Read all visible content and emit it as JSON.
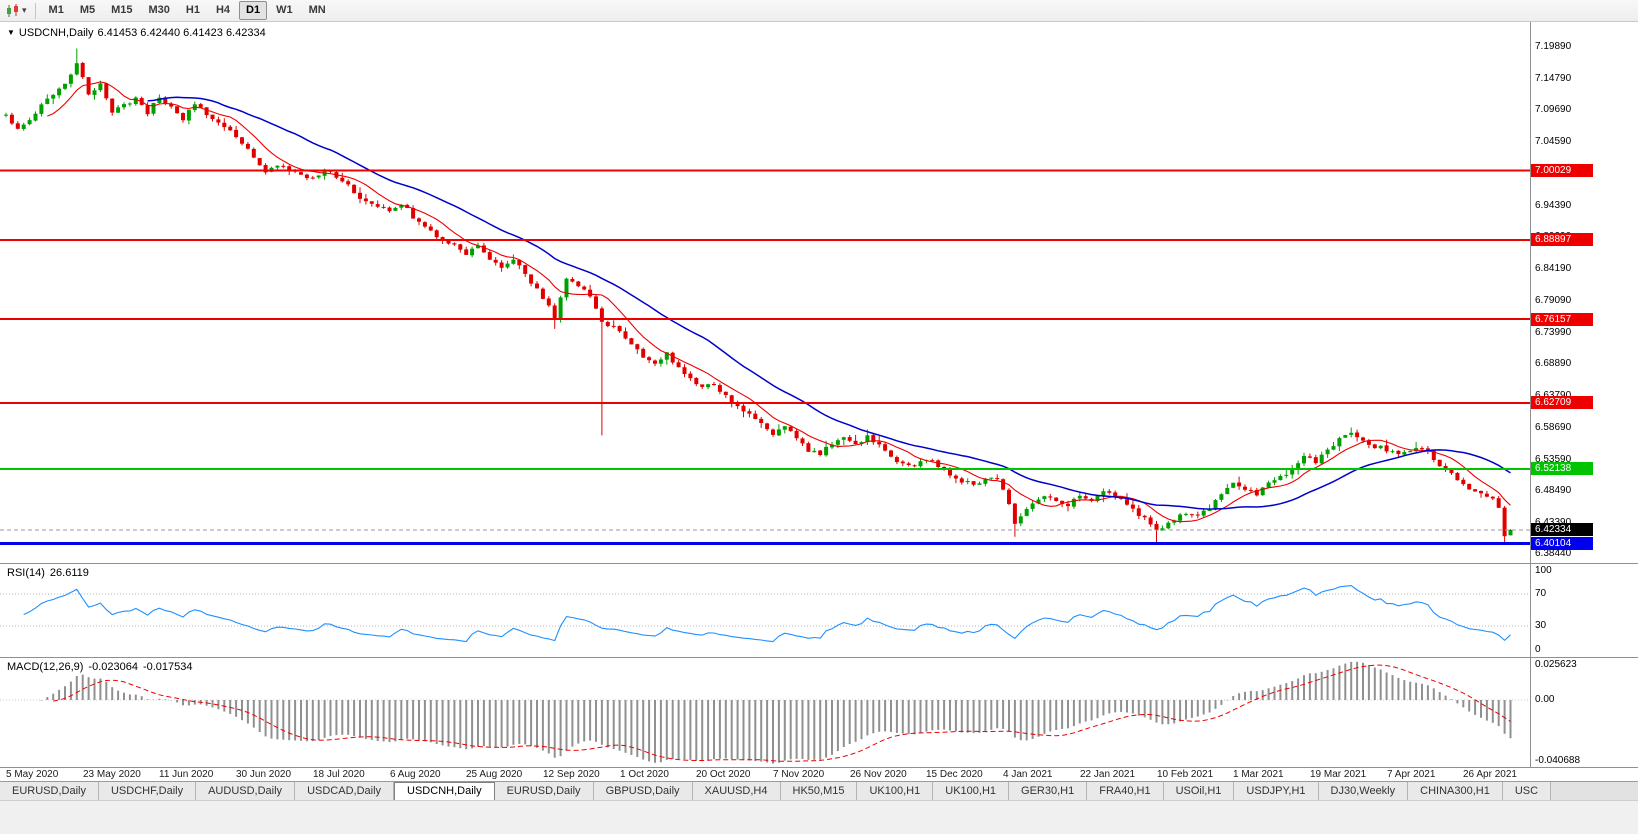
{
  "toolbar": {
    "chart_type_icon": "candlestick-chart",
    "dropdown_icon": "▾",
    "timeframes": [
      "M1",
      "M5",
      "M15",
      "M30",
      "H1",
      "H4",
      "D1",
      "W1",
      "MN"
    ],
    "active_timeframe": "D1"
  },
  "chart": {
    "menu_icon": "▼",
    "title": "USDCNH,Daily",
    "ohlc": "6.41453 6.42440 6.41423 6.42334"
  },
  "price_axis": {
    "labels": [
      "7.19890",
      "7.14790",
      "7.09690",
      "7.04590",
      "6.99490",
      "6.94390",
      "6.89290",
      "6.84190",
      "6.79090",
      "6.73990",
      "6.68890",
      "6.63790",
      "6.58690",
      "6.53590",
      "6.48490",
      "6.43390",
      "6.38440"
    ],
    "badges": [
      {
        "value": "7.00029",
        "color": "#ee0000"
      },
      {
        "value": "6.88897",
        "color": "#ee0000"
      },
      {
        "value": "6.76157",
        "color": "#ee0000"
      },
      {
        "value": "6.62709",
        "color": "#ee0000"
      },
      {
        "value": "6.52138",
        "color": "#00c400"
      },
      {
        "value": "6.42334",
        "color": "#000000"
      },
      {
        "value": "6.40104",
        "color": "#0000ee"
      }
    ]
  },
  "rsi_panel": {
    "label": "RSI(14)",
    "value": "26.6119",
    "levels": [
      "100",
      "70",
      "30",
      "0"
    ]
  },
  "macd_panel": {
    "label": "MACD(12,26,9)",
    "value_main": "-0.023064",
    "value_signal": "-0.017534",
    "axis": [
      "0.025623",
      "0.00",
      "-0.040688"
    ]
  },
  "date_axis": [
    "5 May 2020",
    "23 May 2020",
    "11 Jun 2020",
    "30 Jun 2020",
    "18 Jul 2020",
    "6 Aug 2020",
    "25 Aug 2020",
    "12 Sep 2020",
    "1 Oct 2020",
    "20 Oct 2020",
    "7 Nov 2020",
    "26 Nov 2020",
    "15 Dec 2020",
    "4 Jan 2021",
    "22 Jan 2021",
    "10 Feb 2021",
    "1 Mar 2021",
    "19 Mar 2021",
    "7 Apr 2021",
    "26 Apr 2021"
  ],
  "tabs": [
    {
      "label": "EURUSD,Daily",
      "active": false
    },
    {
      "label": "USDCHF,Daily",
      "active": false
    },
    {
      "label": "AUDUSD,Daily",
      "active": false
    },
    {
      "label": "USDCAD,Daily",
      "active": false
    },
    {
      "label": "USDCNH,Daily",
      "active": true
    },
    {
      "label": "EURUSD,Daily",
      "active": false
    },
    {
      "label": "GBPUSD,Daily",
      "active": false
    },
    {
      "label": "XAUUSD,H4",
      "active": false
    },
    {
      "label": "HK50,M15",
      "active": false
    },
    {
      "label": "UK100,H1",
      "active": false
    },
    {
      "label": "UK100,H1",
      "active": false
    },
    {
      "label": "GER30,H1",
      "active": false
    },
    {
      "label": "FRA40,H1",
      "active": false
    },
    {
      "label": "USOil,H1",
      "active": false
    },
    {
      "label": "USDJPY,H1",
      "active": false
    },
    {
      "label": "DJ30,Weekly",
      "active": false
    },
    {
      "label": "CHINA300,H1",
      "active": false
    },
    {
      "label": "USC",
      "active": false
    }
  ],
  "chart_data": {
    "type": "candlestick",
    "symbol": "USDCNH",
    "timeframe": "Daily",
    "bars": 256,
    "y_range": [
      6.375,
      7.21
    ],
    "current": {
      "open": 6.41453,
      "high": 6.4244,
      "low": 6.41423,
      "close": 6.42334
    },
    "anchors": [
      [
        0,
        7.09
      ],
      [
        2,
        7.068
      ],
      [
        4,
        7.082
      ],
      [
        6,
        7.105
      ],
      [
        8,
        7.122
      ],
      [
        10,
        7.14
      ],
      [
        12,
        7.172
      ],
      [
        13,
        7.148
      ],
      [
        14,
        7.124
      ],
      [
        16,
        7.14
      ],
      [
        18,
        7.092
      ],
      [
        20,
        7.106
      ],
      [
        22,
        7.116
      ],
      [
        24,
        7.094
      ],
      [
        26,
        7.118
      ],
      [
        28,
        7.1
      ],
      [
        30,
        7.084
      ],
      [
        32,
        7.108
      ],
      [
        34,
        7.092
      ],
      [
        36,
        7.074
      ],
      [
        38,
        7.068
      ],
      [
        40,
        7.046
      ],
      [
        42,
        7.018
      ],
      [
        44,
        6.998
      ],
      [
        46,
        7.008
      ],
      [
        48,
        7.002
      ],
      [
        50,
        6.992
      ],
      [
        52,
        6.988
      ],
      [
        54,
        7.0
      ],
      [
        56,
        6.992
      ],
      [
        58,
        6.976
      ],
      [
        60,
        6.958
      ],
      [
        62,
        6.948
      ],
      [
        65,
        6.934
      ],
      [
        67,
        6.948
      ],
      [
        69,
        6.926
      ],
      [
        71,
        6.912
      ],
      [
        73,
        6.896
      ],
      [
        75,
        6.886
      ],
      [
        78,
        6.868
      ],
      [
        80,
        6.882
      ],
      [
        82,
        6.858
      ],
      [
        84,
        6.846
      ],
      [
        86,
        6.858
      ],
      [
        88,
        6.832
      ],
      [
        90,
        6.81
      ],
      [
        92,
        6.784
      ],
      [
        93,
        6.766
      ],
      [
        95,
        6.828
      ],
      [
        97,
        6.818
      ],
      [
        99,
        6.796
      ],
      [
        101,
        6.758
      ],
      [
        103,
        6.75
      ],
      [
        104,
        6.742
      ],
      [
        106,
        6.72
      ],
      [
        108,
        6.7
      ],
      [
        110,
        6.692
      ],
      [
        112,
        6.706
      ],
      [
        114,
        6.684
      ],
      [
        116,
        6.668
      ],
      [
        118,
        6.65
      ],
      [
        120,
        6.658
      ],
      [
        122,
        6.638
      ],
      [
        124,
        6.622
      ],
      [
        126,
        6.608
      ],
      [
        128,
        6.592
      ],
      [
        130,
        6.578
      ],
      [
        132,
        6.59
      ],
      [
        134,
        6.568
      ],
      [
        136,
        6.552
      ],
      [
        138,
        6.546
      ],
      [
        140,
        6.562
      ],
      [
        142,
        6.57
      ],
      [
        144,
        6.558
      ],
      [
        146,
        6.572
      ],
      [
        148,
        6.56
      ],
      [
        150,
        6.542
      ],
      [
        152,
        6.528
      ],
      [
        154,
        6.524
      ],
      [
        156,
        6.538
      ],
      [
        158,
        6.526
      ],
      [
        160,
        6.512
      ],
      [
        162,
        6.502
      ],
      [
        164,
        6.496
      ],
      [
        166,
        6.502
      ],
      [
        168,
        6.508
      ],
      [
        170,
        6.462
      ],
      [
        171,
        6.432
      ],
      [
        172,
        6.448
      ],
      [
        174,
        6.468
      ],
      [
        176,
        6.478
      ],
      [
        178,
        6.47
      ],
      [
        180,
        6.462
      ],
      [
        182,
        6.48
      ],
      [
        184,
        6.472
      ],
      [
        186,
        6.486
      ],
      [
        188,
        6.478
      ],
      [
        190,
        6.462
      ],
      [
        192,
        6.448
      ],
      [
        194,
        6.432
      ],
      [
        195,
        6.42
      ],
      [
        196,
        6.428
      ],
      [
        198,
        6.442
      ],
      [
        200,
        6.452
      ],
      [
        202,
        6.446
      ],
      [
        204,
        6.458
      ],
      [
        206,
        6.478
      ],
      [
        208,
        6.498
      ],
      [
        210,
        6.49
      ],
      [
        212,
        6.478
      ],
      [
        214,
        6.498
      ],
      [
        216,
        6.508
      ],
      [
        218,
        6.522
      ],
      [
        220,
        6.54
      ],
      [
        222,
        6.532
      ],
      [
        224,
        6.552
      ],
      [
        226,
        6.568
      ],
      [
        228,
        6.576
      ],
      [
        230,
        6.566
      ],
      [
        232,
        6.558
      ],
      [
        234,
        6.552
      ],
      [
        236,
        6.542
      ],
      [
        238,
        6.552
      ],
      [
        240,
        6.556
      ],
      [
        242,
        6.538
      ],
      [
        244,
        6.518
      ],
      [
        246,
        6.505
      ],
      [
        248,
        6.49
      ],
      [
        250,
        6.48
      ],
      [
        252,
        6.47
      ],
      [
        253,
        6.456
      ],
      [
        254,
        6.4145
      ],
      [
        255,
        6.42334
      ]
    ],
    "specials": {
      "12": {
        "high": 7.1965
      },
      "93": {
        "low": 6.746
      },
      "101": {
        "low": 6.575
      },
      "171": {
        "low": 6.412
      },
      "195": {
        "low": 6.403
      },
      "254": {
        "low": 6.4035
      },
      "255": {
        "open": 6.41453,
        "high": 6.4244,
        "low": 6.41423,
        "close": 6.42334
      }
    },
    "hlines": [
      {
        "price": 7.00029,
        "color": "#ee0000",
        "width": 2
      },
      {
        "price": 6.88897,
        "color": "#ee0000",
        "width": 2
      },
      {
        "price": 6.76157,
        "color": "#ee0000",
        "width": 2
      },
      {
        "price": 6.62709,
        "color": "#ee0000",
        "width": 2
      },
      {
        "price": 6.52138,
        "color": "#00c400",
        "width": 2
      },
      {
        "price": 6.40104,
        "color": "#0000ee",
        "width": 3
      }
    ],
    "bid_line": {
      "price": 6.42334,
      "color": "#999999"
    },
    "ma_fast": {
      "period": 8,
      "color": "#ee0000"
    },
    "ma_slow": {
      "period": 25,
      "color": "#0000cc"
    },
    "up_color": "#00a000",
    "down_color": "#e00000",
    "rsi": {
      "period": 14,
      "color": "#1e90ff",
      "last": 26.6119,
      "levels": [
        70,
        30
      ]
    },
    "macd": {
      "fast": 12,
      "slow": 26,
      "signal": 9,
      "hist_color": "#909090",
      "signal_color": "#ee0000",
      "range": [
        -0.040688,
        0.025623
      ]
    }
  }
}
